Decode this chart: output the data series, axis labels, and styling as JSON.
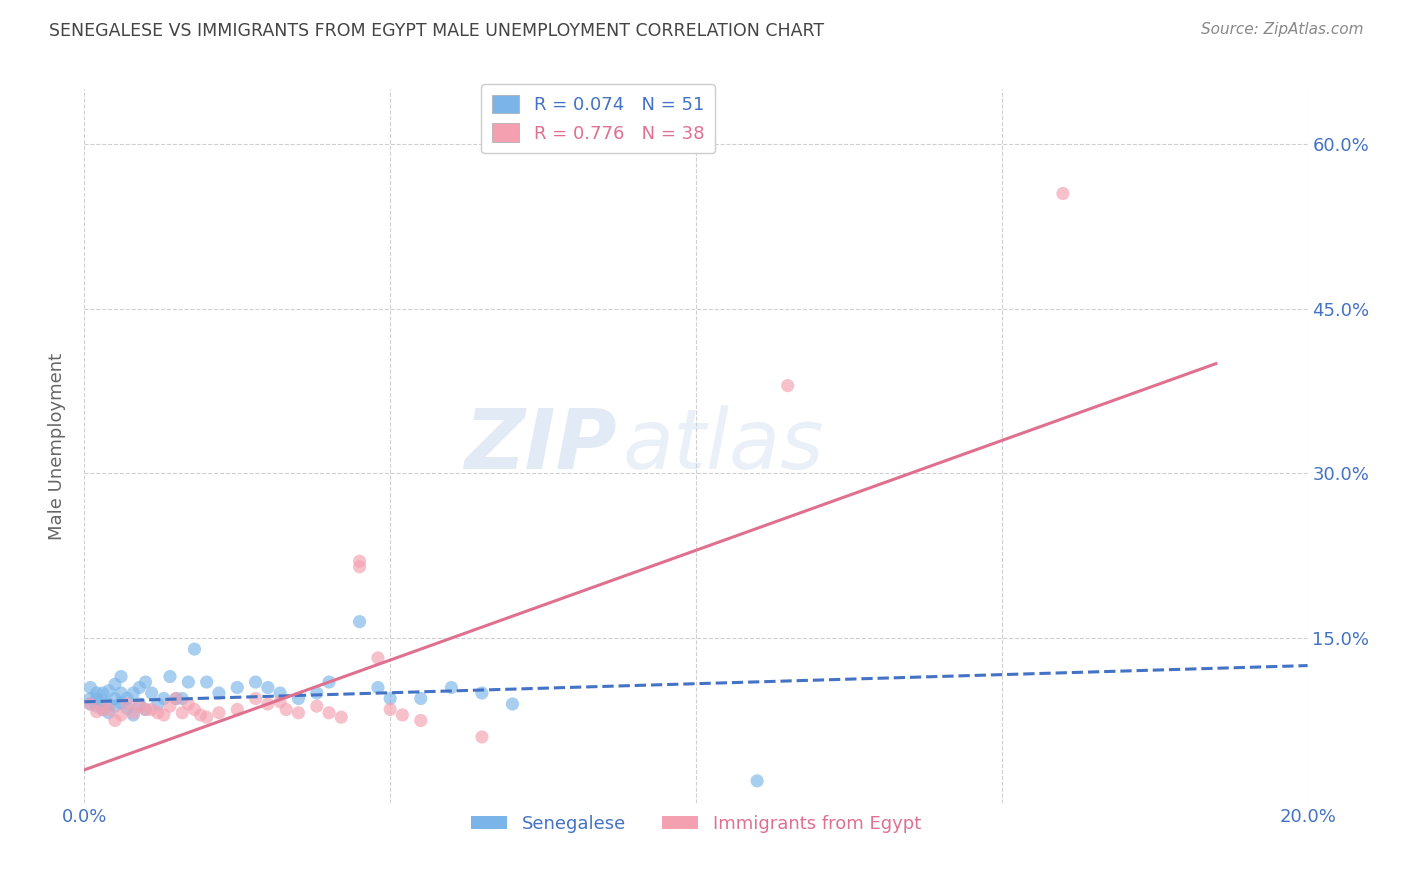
{
  "title": "SENEGALESE VS IMMIGRANTS FROM EGYPT MALE UNEMPLOYMENT CORRELATION CHART",
  "source": "Source: ZipAtlas.com",
  "ylabel": "Male Unemployment",
  "xlim": [
    0.0,
    0.2
  ],
  "ylim": [
    0.0,
    0.65
  ],
  "xticks": [
    0.0,
    0.05,
    0.1,
    0.15,
    0.2
  ],
  "xtick_labels": [
    "0.0%",
    "",
    "",
    "",
    "20.0%"
  ],
  "ytick_positions": [
    0.15,
    0.3,
    0.45,
    0.6
  ],
  "ytick_labels": [
    "15.0%",
    "30.0%",
    "45.0%",
    "60.0%"
  ],
  "legend_labels": [
    "Senegalese",
    "Immigrants from Egypt"
  ],
  "watermark_zip": "ZIP",
  "watermark_atlas": "atlas",
  "blue_scatter": [
    [
      0.001,
      0.105
    ],
    [
      0.001,
      0.095
    ],
    [
      0.001,
      0.09
    ],
    [
      0.002,
      0.1
    ],
    [
      0.002,
      0.095
    ],
    [
      0.002,
      0.088
    ],
    [
      0.003,
      0.1
    ],
    [
      0.003,
      0.085
    ],
    [
      0.003,
      0.093
    ],
    [
      0.004,
      0.102
    ],
    [
      0.004,
      0.09
    ],
    [
      0.004,
      0.082
    ],
    [
      0.005,
      0.108
    ],
    [
      0.005,
      0.095
    ],
    [
      0.005,
      0.088
    ],
    [
      0.006,
      0.115
    ],
    [
      0.006,
      0.1
    ],
    [
      0.006,
      0.091
    ],
    [
      0.007,
      0.095
    ],
    [
      0.007,
      0.086
    ],
    [
      0.008,
      0.1
    ],
    [
      0.008,
      0.08
    ],
    [
      0.009,
      0.105
    ],
    [
      0.009,
      0.09
    ],
    [
      0.01,
      0.11
    ],
    [
      0.01,
      0.085
    ],
    [
      0.011,
      0.1
    ],
    [
      0.012,
      0.09
    ],
    [
      0.013,
      0.095
    ],
    [
      0.014,
      0.115
    ],
    [
      0.015,
      0.095
    ],
    [
      0.016,
      0.095
    ],
    [
      0.017,
      0.11
    ],
    [
      0.018,
      0.14
    ],
    [
      0.02,
      0.11
    ],
    [
      0.022,
      0.1
    ],
    [
      0.025,
      0.105
    ],
    [
      0.028,
      0.11
    ],
    [
      0.03,
      0.105
    ],
    [
      0.032,
      0.1
    ],
    [
      0.035,
      0.095
    ],
    [
      0.038,
      0.1
    ],
    [
      0.04,
      0.11
    ],
    [
      0.045,
      0.165
    ],
    [
      0.048,
      0.105
    ],
    [
      0.05,
      0.095
    ],
    [
      0.055,
      0.095
    ],
    [
      0.06,
      0.105
    ],
    [
      0.065,
      0.1
    ],
    [
      0.07,
      0.09
    ],
    [
      0.11,
      0.02
    ]
  ],
  "pink_scatter": [
    [
      0.001,
      0.09
    ],
    [
      0.002,
      0.083
    ],
    [
      0.003,
      0.085
    ],
    [
      0.004,
      0.085
    ],
    [
      0.005,
      0.075
    ],
    [
      0.006,
      0.08
    ],
    [
      0.007,
      0.09
    ],
    [
      0.008,
      0.082
    ],
    [
      0.009,
      0.088
    ],
    [
      0.01,
      0.085
    ],
    [
      0.011,
      0.085
    ],
    [
      0.012,
      0.082
    ],
    [
      0.013,
      0.08
    ],
    [
      0.014,
      0.088
    ],
    [
      0.015,
      0.095
    ],
    [
      0.016,
      0.082
    ],
    [
      0.017,
      0.09
    ],
    [
      0.018,
      0.085
    ],
    [
      0.019,
      0.08
    ],
    [
      0.02,
      0.078
    ],
    [
      0.022,
      0.082
    ],
    [
      0.025,
      0.085
    ],
    [
      0.028,
      0.095
    ],
    [
      0.03,
      0.09
    ],
    [
      0.032,
      0.092
    ],
    [
      0.033,
      0.085
    ],
    [
      0.035,
      0.082
    ],
    [
      0.038,
      0.088
    ],
    [
      0.04,
      0.082
    ],
    [
      0.042,
      0.078
    ],
    [
      0.045,
      0.22
    ],
    [
      0.045,
      0.215
    ],
    [
      0.048,
      0.132
    ],
    [
      0.05,
      0.085
    ],
    [
      0.052,
      0.08
    ],
    [
      0.055,
      0.075
    ],
    [
      0.065,
      0.06
    ],
    [
      0.115,
      0.38
    ],
    [
      0.16,
      0.555
    ]
  ],
  "blue_line": {
    "x": [
      0.0,
      0.2
    ],
    "y": [
      0.092,
      0.125
    ]
  },
  "pink_line": {
    "x": [
      0.0,
      0.185
    ],
    "y": [
      0.03,
      0.4
    ]
  },
  "blue_color": "#7ab4e8",
  "pink_color": "#f4a0b0",
  "blue_line_color": "#4472c4",
  "pink_line_color": "#e07090",
  "background_color": "#ffffff",
  "grid_color": "#d0d0d0"
}
